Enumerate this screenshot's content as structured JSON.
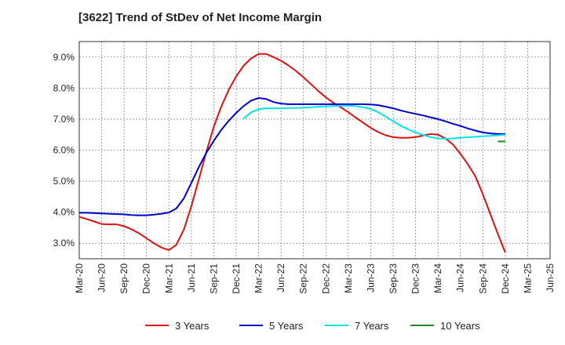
{
  "chart_data": {
    "type": "line",
    "title": "[3622]  Trend of StDev of Net Income Margin",
    "x_tick_labels": [
      "Mar-20",
      "Jun-20",
      "Sep-20",
      "Dec-20",
      "Mar-21",
      "Jun-21",
      "Sep-21",
      "Dec-21",
      "Mar-22",
      "Jun-22",
      "Sep-22",
      "Dec-22",
      "Mar-23",
      "Jun-23",
      "Sep-23",
      "Dec-23",
      "Mar-24",
      "Jun-24",
      "Sep-24",
      "Dec-24",
      "Mar-25",
      "Jun-25"
    ],
    "y_tick_labels": [
      "3.0%",
      "4.0%",
      "5.0%",
      "6.0%",
      "7.0%",
      "8.0%",
      "9.0%"
    ],
    "y_ticks": [
      3.0,
      4.0,
      5.0,
      6.0,
      7.0,
      8.0,
      9.0
    ],
    "ylim": [
      2.5,
      9.5
    ],
    "xlim": [
      0,
      21
    ],
    "grid": true,
    "legend_position": "bottom",
    "series": [
      {
        "name": "3 Years",
        "color": "#dd1111",
        "points": [
          [
            0,
            3.85
          ],
          [
            0.33,
            3.78
          ],
          [
            0.67,
            3.7
          ],
          [
            1,
            3.62
          ],
          [
            1.33,
            3.61
          ],
          [
            1.67,
            3.61
          ],
          [
            2,
            3.55
          ],
          [
            2.33,
            3.45
          ],
          [
            2.67,
            3.32
          ],
          [
            3,
            3.16
          ],
          [
            3.33,
            3.0
          ],
          [
            3.67,
            2.86
          ],
          [
            4,
            2.78
          ],
          [
            4.33,
            2.95
          ],
          [
            4.67,
            3.45
          ],
          [
            5,
            4.2
          ],
          [
            5.33,
            5.05
          ],
          [
            5.67,
            5.95
          ],
          [
            6,
            6.75
          ],
          [
            6.33,
            7.4
          ],
          [
            6.67,
            7.95
          ],
          [
            7,
            8.38
          ],
          [
            7.33,
            8.72
          ],
          [
            7.67,
            8.96
          ],
          [
            8,
            9.1
          ],
          [
            8.33,
            9.1
          ],
          [
            8.67,
            9.0
          ],
          [
            9,
            8.88
          ],
          [
            9.33,
            8.73
          ],
          [
            9.67,
            8.55
          ],
          [
            10,
            8.35
          ],
          [
            10.33,
            8.13
          ],
          [
            10.67,
            7.9
          ],
          [
            11,
            7.7
          ],
          [
            11.33,
            7.53
          ],
          [
            11.67,
            7.38
          ],
          [
            12,
            7.22
          ],
          [
            12.33,
            7.05
          ],
          [
            12.67,
            6.88
          ],
          [
            13,
            6.72
          ],
          [
            13.33,
            6.58
          ],
          [
            13.67,
            6.48
          ],
          [
            14,
            6.42
          ],
          [
            14.33,
            6.4
          ],
          [
            14.67,
            6.4
          ],
          [
            15,
            6.42
          ],
          [
            15.33,
            6.47
          ],
          [
            15.67,
            6.52
          ],
          [
            16,
            6.5
          ],
          [
            16.33,
            6.38
          ],
          [
            16.67,
            6.18
          ],
          [
            17,
            5.88
          ],
          [
            17.33,
            5.55
          ],
          [
            17.67,
            5.15
          ],
          [
            18,
            4.58
          ],
          [
            18.33,
            3.95
          ],
          [
            18.67,
            3.3
          ],
          [
            19,
            2.7
          ]
        ]
      },
      {
        "name": "5 Years",
        "color": "#0000cc",
        "points": [
          [
            0,
            3.98
          ],
          [
            0.33,
            3.98
          ],
          [
            0.67,
            3.97
          ],
          [
            1,
            3.96
          ],
          [
            1.33,
            3.95
          ],
          [
            1.67,
            3.94
          ],
          [
            2,
            3.93
          ],
          [
            2.33,
            3.91
          ],
          [
            2.67,
            3.9
          ],
          [
            3,
            3.9
          ],
          [
            3.33,
            3.92
          ],
          [
            3.67,
            3.95
          ],
          [
            4,
            3.99
          ],
          [
            4.33,
            4.12
          ],
          [
            4.67,
            4.45
          ],
          [
            5,
            4.95
          ],
          [
            5.33,
            5.45
          ],
          [
            5.67,
            5.92
          ],
          [
            6,
            6.3
          ],
          [
            6.33,
            6.65
          ],
          [
            6.67,
            6.95
          ],
          [
            7,
            7.2
          ],
          [
            7.33,
            7.42
          ],
          [
            7.67,
            7.6
          ],
          [
            8,
            7.68
          ],
          [
            8.33,
            7.65
          ],
          [
            8.67,
            7.55
          ],
          [
            9,
            7.5
          ],
          [
            9.33,
            7.48
          ],
          [
            9.67,
            7.48
          ],
          [
            10,
            7.48
          ],
          [
            10.33,
            7.48
          ],
          [
            10.67,
            7.48
          ],
          [
            11,
            7.48
          ],
          [
            11.33,
            7.48
          ],
          [
            11.67,
            7.48
          ],
          [
            12,
            7.48
          ],
          [
            12.33,
            7.48
          ],
          [
            12.67,
            7.48
          ],
          [
            13,
            7.47
          ],
          [
            13.33,
            7.45
          ],
          [
            13.67,
            7.4
          ],
          [
            14,
            7.35
          ],
          [
            14.33,
            7.28
          ],
          [
            14.67,
            7.22
          ],
          [
            15,
            7.17
          ],
          [
            15.33,
            7.12
          ],
          [
            15.67,
            7.06
          ],
          [
            16,
            7.0
          ],
          [
            16.33,
            6.93
          ],
          [
            16.67,
            6.85
          ],
          [
            17,
            6.78
          ],
          [
            17.33,
            6.7
          ],
          [
            17.67,
            6.63
          ],
          [
            18,
            6.57
          ],
          [
            18.33,
            6.54
          ],
          [
            18.67,
            6.52
          ],
          [
            19,
            6.52
          ]
        ]
      },
      {
        "name": "7 Years",
        "color": "#00e5e5",
        "points": [
          [
            7.33,
            7.02
          ],
          [
            7.67,
            7.22
          ],
          [
            8,
            7.32
          ],
          [
            8.33,
            7.35
          ],
          [
            8.67,
            7.35
          ],
          [
            9,
            7.35
          ],
          [
            9.33,
            7.36
          ],
          [
            9.67,
            7.36
          ],
          [
            10,
            7.37
          ],
          [
            10.33,
            7.38
          ],
          [
            10.67,
            7.4
          ],
          [
            11,
            7.41
          ],
          [
            11.33,
            7.42
          ],
          [
            11.67,
            7.43
          ],
          [
            12,
            7.43
          ],
          [
            12.33,
            7.42
          ],
          [
            12.67,
            7.38
          ],
          [
            13,
            7.33
          ],
          [
            13.33,
            7.22
          ],
          [
            13.67,
            7.08
          ],
          [
            14,
            6.93
          ],
          [
            14.33,
            6.79
          ],
          [
            14.67,
            6.67
          ],
          [
            15,
            6.57
          ],
          [
            15.33,
            6.49
          ],
          [
            15.67,
            6.42
          ],
          [
            16,
            6.38
          ],
          [
            16.33,
            6.37
          ],
          [
            16.67,
            6.38
          ],
          [
            17,
            6.4
          ],
          [
            17.33,
            6.42
          ],
          [
            17.67,
            6.43
          ],
          [
            18,
            6.45
          ],
          [
            18.33,
            6.46
          ],
          [
            18.67,
            6.48
          ],
          [
            19,
            6.5
          ]
        ]
      },
      {
        "name": "10 Years",
        "color": "#228822",
        "points": [
          [
            18.67,
            6.28
          ],
          [
            19,
            6.28
          ]
        ]
      }
    ]
  }
}
